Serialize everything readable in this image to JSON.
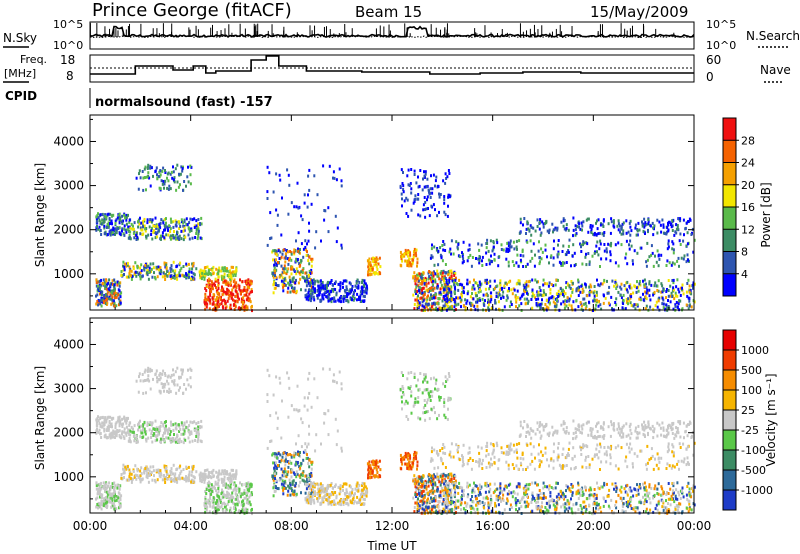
{
  "header": {
    "station": "Prince George (fitACF)",
    "beam": "Beam 15",
    "date": "15/May/2009"
  },
  "noise_panel": {
    "left_label": "N.Sky",
    "right_label": "N.Search",
    "left_ticks": [
      "10^5",
      "10^0"
    ],
    "right_ticks": [
      "10^5",
      "10^0"
    ]
  },
  "freq_panel": {
    "left_label_1": "Freq.",
    "left_label_2": "[MHz]",
    "right_label": "Nave",
    "left_ticks": [
      "18",
      "8"
    ],
    "right_ticks": [
      "60",
      "0"
    ]
  },
  "cpid": {
    "label": "CPID",
    "value": "normalsound (fast) -157"
  },
  "colors": {
    "power": [
      "#0000ff",
      "#2e55b0",
      "#3c8c64",
      "#5aba4a",
      "#f2e600",
      "#f5a000",
      "#f56200",
      "#f01010"
    ],
    "velocity": [
      "#1e3cc8",
      "#2d6a9a",
      "#3c8c64",
      "#5ac848",
      "#c8c8c8",
      "#f5b400",
      "#f58c00",
      "#f03c00",
      "#e60000"
    ]
  },
  "chart_data": [
    {
      "type": "heatmap",
      "title": "",
      "xlabel": "Time UT",
      "ylabel": "Slant Range [km]",
      "x_ticks": [
        "00:00",
        "04:00",
        "08:00",
        "12:00",
        "16:00",
        "20:00",
        "00:00"
      ],
      "xlim": [
        0,
        24
      ],
      "y_ticks": [
        "1000",
        "2000",
        "3000",
        "4000"
      ],
      "ylim": [
        180,
        4600
      ],
      "colorbar": {
        "label": "Power [dB]",
        "ticks": [
          "4",
          "8",
          "12",
          "16",
          "20",
          "24",
          "28"
        ],
        "range": [
          0,
          32
        ]
      }
    },
    {
      "type": "heatmap",
      "title": "",
      "xlabel": "Time UT",
      "ylabel": "Slant Range [km]",
      "x_ticks": [
        "00:00",
        "04:00",
        "08:00",
        "12:00",
        "16:00",
        "20:00",
        "00:00"
      ],
      "xlim": [
        0,
        24
      ],
      "y_ticks": [
        "1000",
        "2000",
        "3000",
        "4000"
      ],
      "ylim": [
        180,
        4600
      ],
      "colorbar": {
        "label": "Velocity [m s⁻¹]",
        "ticks": [
          "1000",
          "500",
          "100",
          "25",
          "-25",
          "-100",
          "-500",
          "-1000"
        ]
      }
    }
  ]
}
